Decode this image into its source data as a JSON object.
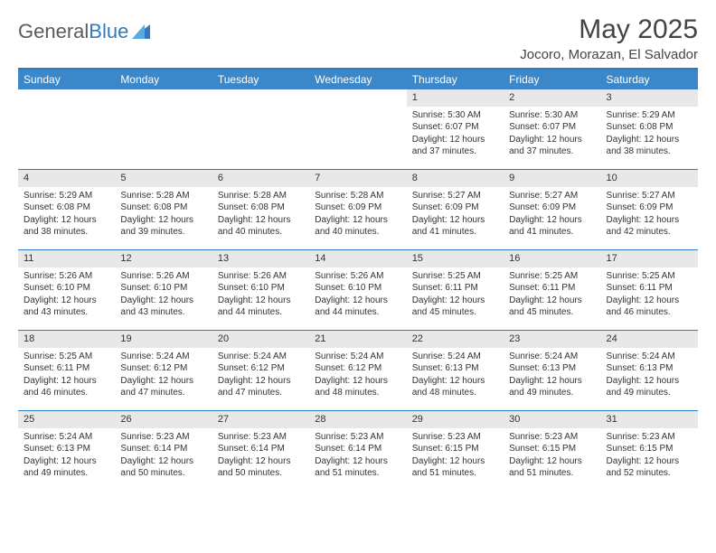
{
  "logo": {
    "text1": "General",
    "text2": "Blue"
  },
  "header": {
    "title": "May 2025",
    "location": "Jocoro, Morazan, El Salvador"
  },
  "daysOfWeek": [
    "Sunday",
    "Monday",
    "Tuesday",
    "Wednesday",
    "Thursday",
    "Friday",
    "Saturday"
  ],
  "colors": {
    "header_bg": "#3b87c8",
    "border": "#2f7bbf",
    "daynum_bg": "#e8e8e8"
  },
  "weeks": [
    [
      {
        "empty": true
      },
      {
        "empty": true
      },
      {
        "empty": true
      },
      {
        "empty": true
      },
      {
        "day": "1",
        "sunrise": "Sunrise: 5:30 AM",
        "sunset": "Sunset: 6:07 PM",
        "daylight": "Daylight: 12 hours and 37 minutes."
      },
      {
        "day": "2",
        "sunrise": "Sunrise: 5:30 AM",
        "sunset": "Sunset: 6:07 PM",
        "daylight": "Daylight: 12 hours and 37 minutes."
      },
      {
        "day": "3",
        "sunrise": "Sunrise: 5:29 AM",
        "sunset": "Sunset: 6:08 PM",
        "daylight": "Daylight: 12 hours and 38 minutes."
      }
    ],
    [
      {
        "day": "4",
        "sunrise": "Sunrise: 5:29 AM",
        "sunset": "Sunset: 6:08 PM",
        "daylight": "Daylight: 12 hours and 38 minutes."
      },
      {
        "day": "5",
        "sunrise": "Sunrise: 5:28 AM",
        "sunset": "Sunset: 6:08 PM",
        "daylight": "Daylight: 12 hours and 39 minutes."
      },
      {
        "day": "6",
        "sunrise": "Sunrise: 5:28 AM",
        "sunset": "Sunset: 6:08 PM",
        "daylight": "Daylight: 12 hours and 40 minutes."
      },
      {
        "day": "7",
        "sunrise": "Sunrise: 5:28 AM",
        "sunset": "Sunset: 6:09 PM",
        "daylight": "Daylight: 12 hours and 40 minutes."
      },
      {
        "day": "8",
        "sunrise": "Sunrise: 5:27 AM",
        "sunset": "Sunset: 6:09 PM",
        "daylight": "Daylight: 12 hours and 41 minutes."
      },
      {
        "day": "9",
        "sunrise": "Sunrise: 5:27 AM",
        "sunset": "Sunset: 6:09 PM",
        "daylight": "Daylight: 12 hours and 41 minutes."
      },
      {
        "day": "10",
        "sunrise": "Sunrise: 5:27 AM",
        "sunset": "Sunset: 6:09 PM",
        "daylight": "Daylight: 12 hours and 42 minutes."
      }
    ],
    [
      {
        "day": "11",
        "sunrise": "Sunrise: 5:26 AM",
        "sunset": "Sunset: 6:10 PM",
        "daylight": "Daylight: 12 hours and 43 minutes."
      },
      {
        "day": "12",
        "sunrise": "Sunrise: 5:26 AM",
        "sunset": "Sunset: 6:10 PM",
        "daylight": "Daylight: 12 hours and 43 minutes."
      },
      {
        "day": "13",
        "sunrise": "Sunrise: 5:26 AM",
        "sunset": "Sunset: 6:10 PM",
        "daylight": "Daylight: 12 hours and 44 minutes."
      },
      {
        "day": "14",
        "sunrise": "Sunrise: 5:26 AM",
        "sunset": "Sunset: 6:10 PM",
        "daylight": "Daylight: 12 hours and 44 minutes."
      },
      {
        "day": "15",
        "sunrise": "Sunrise: 5:25 AM",
        "sunset": "Sunset: 6:11 PM",
        "daylight": "Daylight: 12 hours and 45 minutes."
      },
      {
        "day": "16",
        "sunrise": "Sunrise: 5:25 AM",
        "sunset": "Sunset: 6:11 PM",
        "daylight": "Daylight: 12 hours and 45 minutes."
      },
      {
        "day": "17",
        "sunrise": "Sunrise: 5:25 AM",
        "sunset": "Sunset: 6:11 PM",
        "daylight": "Daylight: 12 hours and 46 minutes."
      }
    ],
    [
      {
        "day": "18",
        "sunrise": "Sunrise: 5:25 AM",
        "sunset": "Sunset: 6:11 PM",
        "daylight": "Daylight: 12 hours and 46 minutes."
      },
      {
        "day": "19",
        "sunrise": "Sunrise: 5:24 AM",
        "sunset": "Sunset: 6:12 PM",
        "daylight": "Daylight: 12 hours and 47 minutes."
      },
      {
        "day": "20",
        "sunrise": "Sunrise: 5:24 AM",
        "sunset": "Sunset: 6:12 PM",
        "daylight": "Daylight: 12 hours and 47 minutes."
      },
      {
        "day": "21",
        "sunrise": "Sunrise: 5:24 AM",
        "sunset": "Sunset: 6:12 PM",
        "daylight": "Daylight: 12 hours and 48 minutes."
      },
      {
        "day": "22",
        "sunrise": "Sunrise: 5:24 AM",
        "sunset": "Sunset: 6:13 PM",
        "daylight": "Daylight: 12 hours and 48 minutes."
      },
      {
        "day": "23",
        "sunrise": "Sunrise: 5:24 AM",
        "sunset": "Sunset: 6:13 PM",
        "daylight": "Daylight: 12 hours and 49 minutes."
      },
      {
        "day": "24",
        "sunrise": "Sunrise: 5:24 AM",
        "sunset": "Sunset: 6:13 PM",
        "daylight": "Daylight: 12 hours and 49 minutes."
      }
    ],
    [
      {
        "day": "25",
        "sunrise": "Sunrise: 5:24 AM",
        "sunset": "Sunset: 6:13 PM",
        "daylight": "Daylight: 12 hours and 49 minutes."
      },
      {
        "day": "26",
        "sunrise": "Sunrise: 5:23 AM",
        "sunset": "Sunset: 6:14 PM",
        "daylight": "Daylight: 12 hours and 50 minutes."
      },
      {
        "day": "27",
        "sunrise": "Sunrise: 5:23 AM",
        "sunset": "Sunset: 6:14 PM",
        "daylight": "Daylight: 12 hours and 50 minutes."
      },
      {
        "day": "28",
        "sunrise": "Sunrise: 5:23 AM",
        "sunset": "Sunset: 6:14 PM",
        "daylight": "Daylight: 12 hours and 51 minutes."
      },
      {
        "day": "29",
        "sunrise": "Sunrise: 5:23 AM",
        "sunset": "Sunset: 6:15 PM",
        "daylight": "Daylight: 12 hours and 51 minutes."
      },
      {
        "day": "30",
        "sunrise": "Sunrise: 5:23 AM",
        "sunset": "Sunset: 6:15 PM",
        "daylight": "Daylight: 12 hours and 51 minutes."
      },
      {
        "day": "31",
        "sunrise": "Sunrise: 5:23 AM",
        "sunset": "Sunset: 6:15 PM",
        "daylight": "Daylight: 12 hours and 52 minutes."
      }
    ]
  ]
}
